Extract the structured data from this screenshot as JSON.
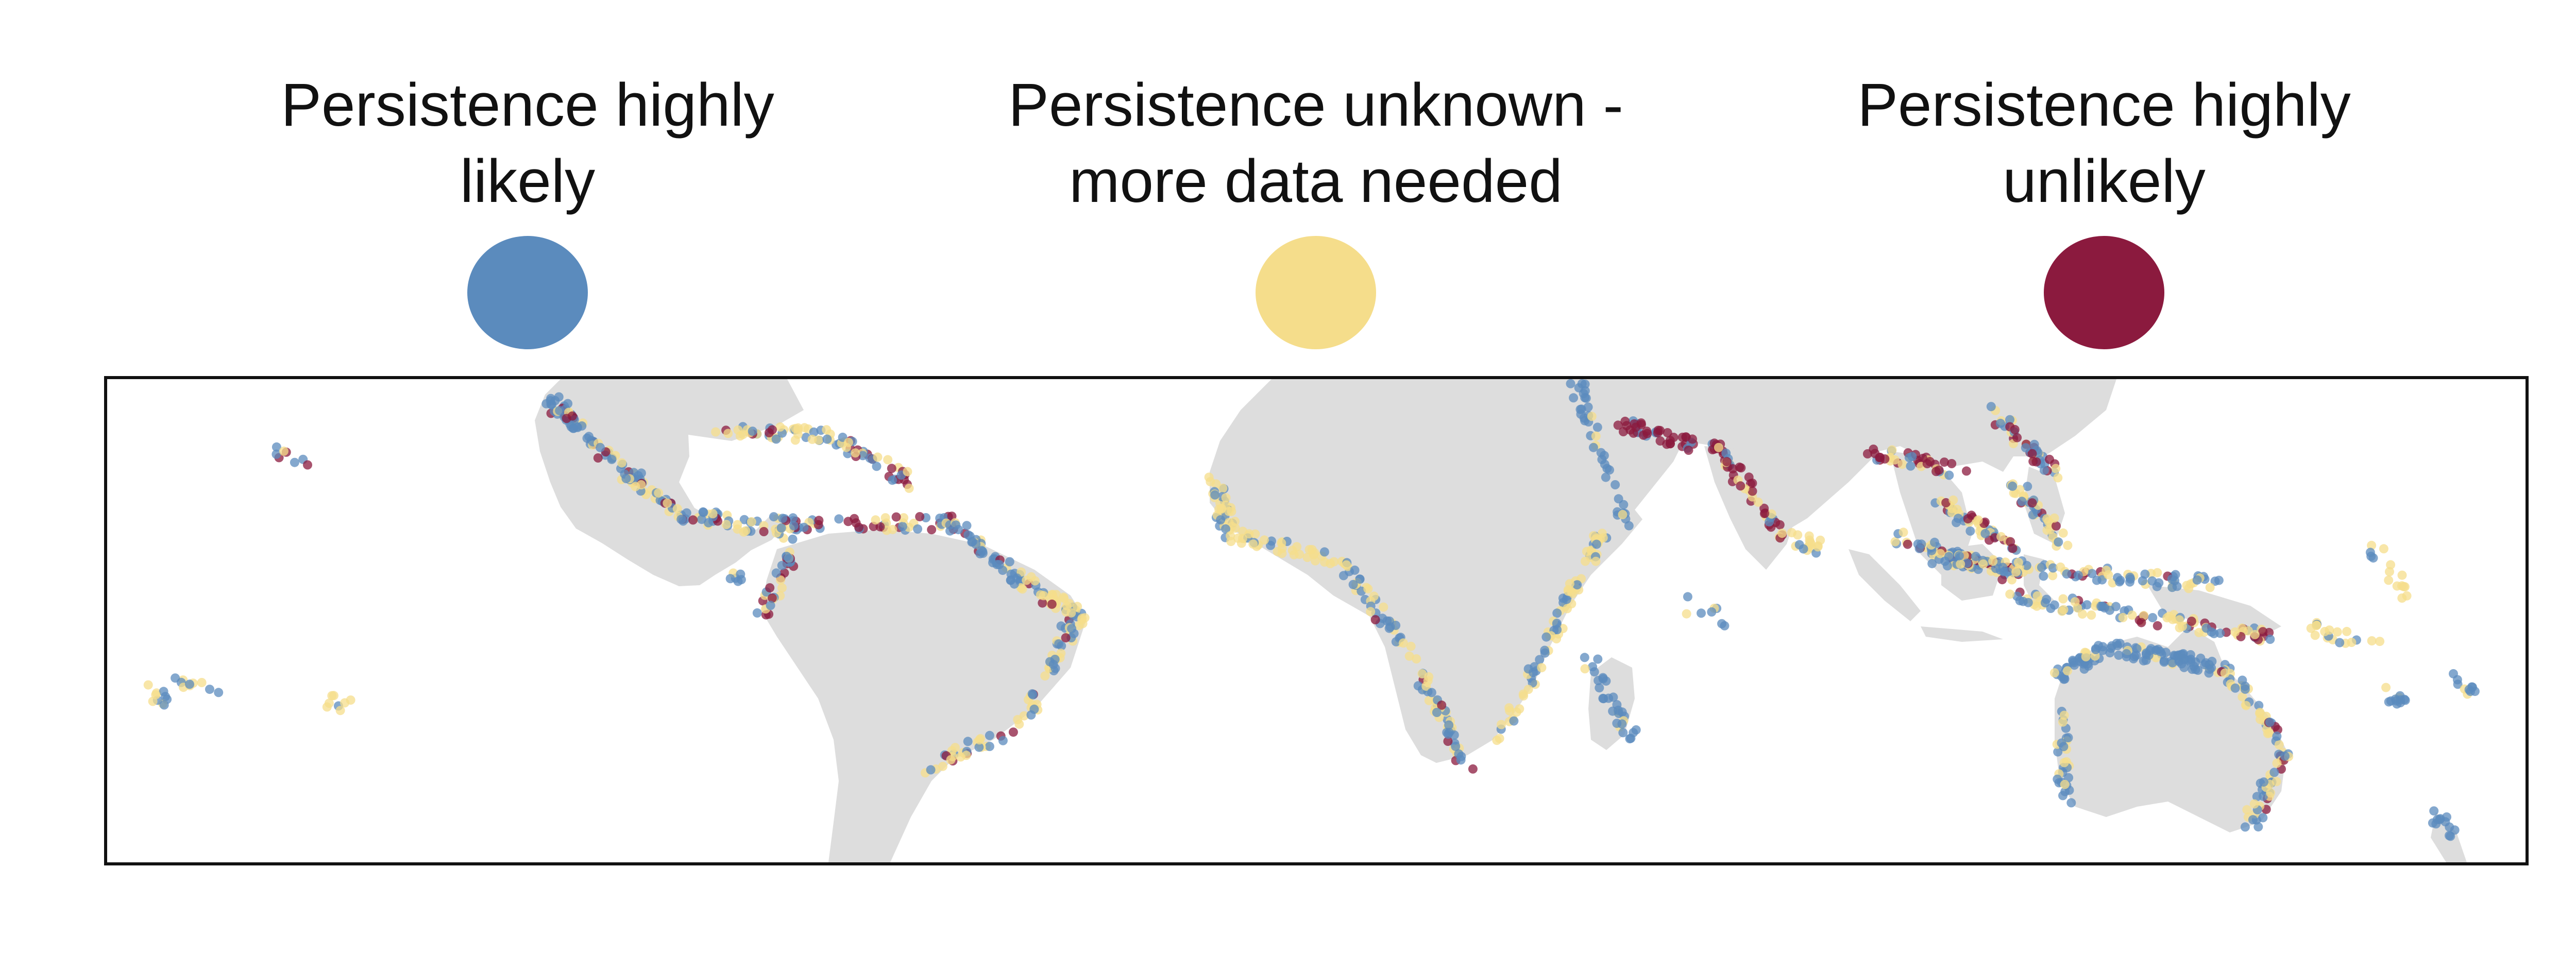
{
  "legend": {
    "items": [
      {
        "label": "Persistence highly\nlikely",
        "color": "#5b8bbd",
        "icon": "blue-circle"
      },
      {
        "label": "Persistence unknown -\nmore data needed",
        "color": "#f5dd8b",
        "icon": "yellow-circle"
      },
      {
        "label": "Persistence highly\nunlikely",
        "color": "#8b1a3e",
        "icon": "maroon-circle"
      }
    ]
  },
  "map": {
    "land_color": "#dddddd",
    "frame_color": "#111111",
    "point_opacity": 0.75
  }
}
